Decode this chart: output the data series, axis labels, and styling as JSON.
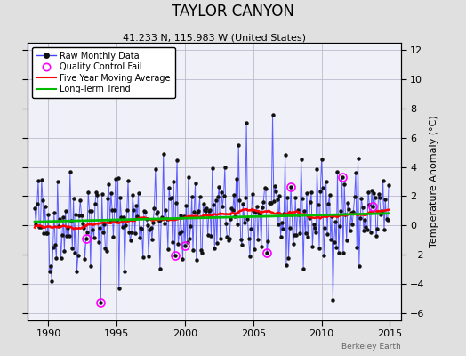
{
  "title": "TAYLOR CANYON",
  "subtitle": "41.233 N, 115.983 W (United States)",
  "ylabel": "Temperature Anomaly (°C)",
  "watermark": "Berkeley Earth",
  "xlim": [
    1988.5,
    2015.8
  ],
  "ylim": [
    -6.5,
    12.5
  ],
  "yticks": [
    -6,
    -4,
    -2,
    0,
    2,
    4,
    6,
    8,
    10,
    12
  ],
  "xticks": [
    1990,
    1995,
    2000,
    2005,
    2010,
    2015
  ],
  "bg_color": "#e0e0e0",
  "plot_bg_color": "#f0f0f8",
  "grid_color": "#bbbbcc",
  "line_color": "#4444ff",
  "ma_color": "#ff0000",
  "trend_color": "#00bb00",
  "qc_color": "#ff00ff",
  "title_fontsize": 12,
  "subtitle_fontsize": 8,
  "tick_fontsize": 8,
  "ylabel_fontsize": 8,
  "legend_fontsize": 7,
  "seed": 42
}
